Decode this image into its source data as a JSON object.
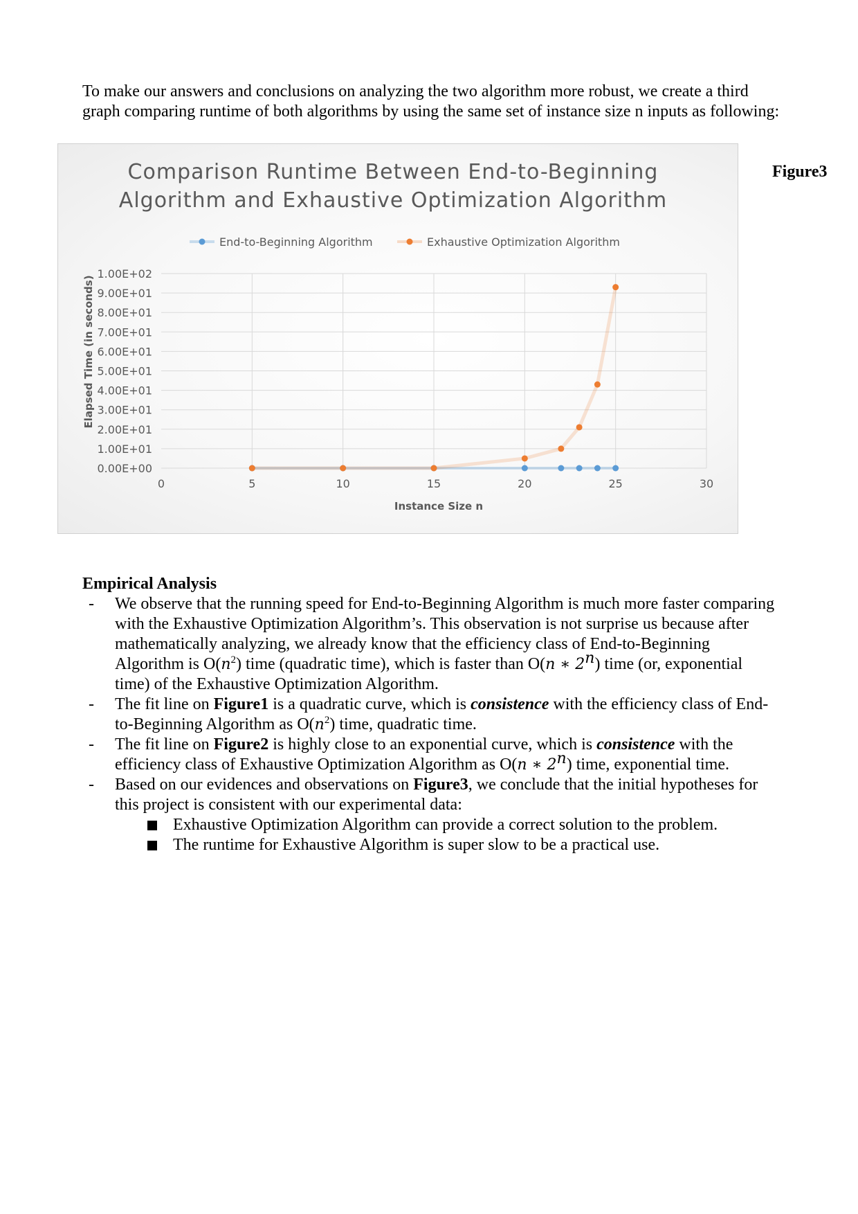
{
  "intro_text": "To make our answers and conclusions on analyzing the two algorithm more robust, we create a third graph comparing runtime of both algorithms by using the same set of instance size n inputs as following:",
  "figure_label": "Figure3",
  "chart_data": {
    "type": "scatter",
    "title_lines": [
      "Comparison Runtime Between End-to-Beginning",
      "Algorithm and Exhaustive Optimization Algorithm"
    ],
    "xlabel": "Instance Size n",
    "ylabel": "Elapsed Time (in seconds)",
    "xlim": [
      0,
      30
    ],
    "ylim": [
      0,
      100
    ],
    "x_ticks": [
      "0",
      "5",
      "10",
      "15",
      "20",
      "25",
      "30"
    ],
    "y_ticks": [
      "0.00E+00",
      "1.00E+01",
      "2.00E+01",
      "3.00E+01",
      "4.00E+01",
      "5.00E+01",
      "6.00E+01",
      "7.00E+01",
      "8.00E+01",
      "9.00E+01",
      "1.00E+02"
    ],
    "grid": true,
    "legend_position": "top",
    "series": [
      {
        "name": "End-to-Beginning Algorithm",
        "color": "#5b9bd5",
        "x": [
          5,
          10,
          15,
          20,
          22,
          23,
          24,
          25
        ],
        "y": [
          0,
          0,
          0,
          0,
          0,
          0,
          0,
          0
        ]
      },
      {
        "name": "Exhaustive Optimization Algorithm",
        "color": "#ed7d31",
        "x": [
          5,
          10,
          15,
          20,
          22,
          23,
          24,
          25
        ],
        "y": [
          0,
          0,
          0,
          5,
          10,
          21,
          43,
          93
        ]
      }
    ]
  },
  "analysis": {
    "heading": "Empirical Analysis",
    "bullet_marker": "-",
    "b1": {
      "t1": "We observe that the running speed for End-to-Beginning Algorithm is much more faster comparing with the Exhaustive Optimization Algorithm’s. This observation is not surprise us because after mathematically analyzing, we already know that the efficiency class of End-to-Beginning Algorithm is O(",
      "n1": "n",
      "e1": "2",
      "t2": ") time (quadratic time), which is faster than O(",
      "n2": "n ∗ 2",
      "e2": "n",
      "t3": ") time (or, exponential time) of the Exhaustive Optimization Algorithm."
    },
    "b2": {
      "t1": "The fit line on ",
      "fig": "Figure1",
      "t2": " is a quadratic curve, which is ",
      "emph": "consistence",
      "t3": " with the efficiency class of End-to-Beginning Algorithm as O(",
      "n1": "n",
      "e1": "2",
      "t4": ") time, quadratic time."
    },
    "b3": {
      "t1": "The fit line on ",
      "fig": "Figure2",
      "t2": " is highly close to an exponential curve, which is ",
      "emph": "consistence",
      "t3": " with the efficiency class of Exhaustive Optimization Algorithm as O(",
      "n1": "n ∗ 2",
      "e1": "n",
      "t4": ") time, exponential time."
    },
    "b4": {
      "t1": "Based on our evidences and observations on ",
      "fig": "Figure3",
      "t2": ", we conclude that the initial hypotheses for this project is consistent with our experimental data:"
    },
    "sub_items": [
      "Exhaustive Optimization Algorithm can provide a correct solution to the problem.",
      "The runtime for Exhaustive Algorithm is super slow to be a practical use."
    ]
  }
}
